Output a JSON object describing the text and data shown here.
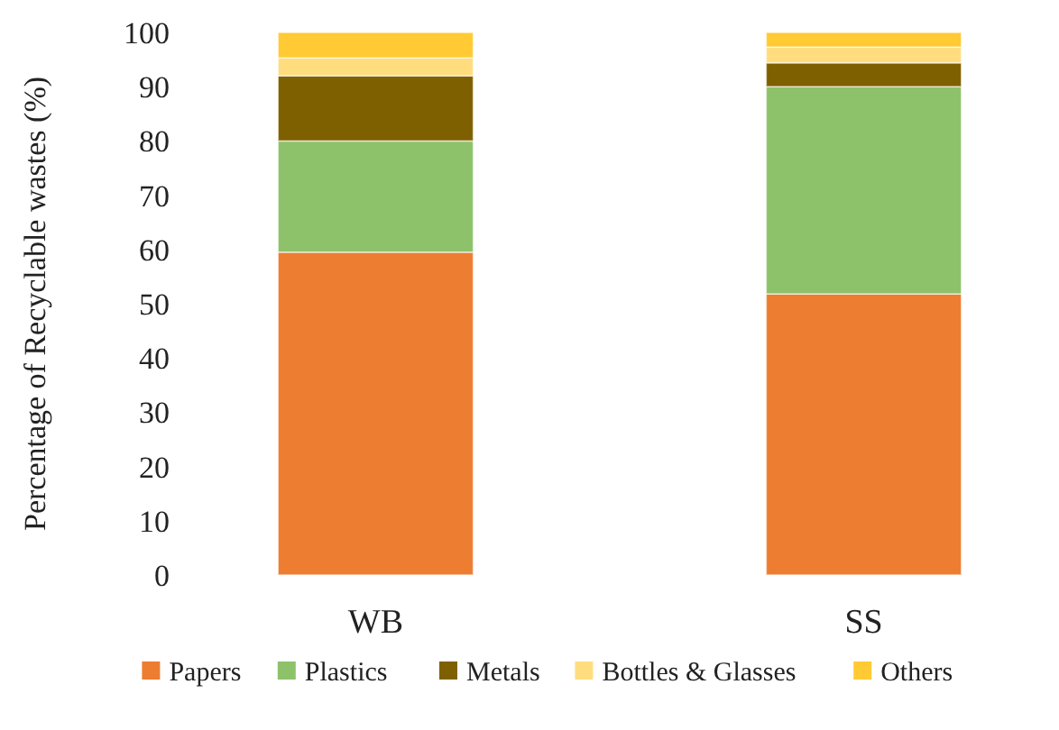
{
  "chart_data": {
    "type": "bar",
    "stacked": true,
    "ylabel": "Percentage of Recyclable wastes (%)",
    "categories": [
      "WB",
      "SS"
    ],
    "series": [
      {
        "name": "Papers",
        "color": "#ed7d31",
        "values": [
          59.5,
          51.8
        ]
      },
      {
        "name": "Plastics",
        "color": "#8dc26a",
        "values": [
          20.5,
          38.2
        ]
      },
      {
        "name": "Metals",
        "color": "#7f6000",
        "values": [
          12,
          4.4
        ]
      },
      {
        "name": "Bottles & Glasses",
        "color": "#ffdd7f",
        "values": [
          3.3,
          2.9
        ]
      },
      {
        "name": "Others",
        "color": "#ffca33",
        "values": [
          4.7,
          2.7
        ]
      }
    ],
    "ylim": [
      0,
      100
    ],
    "yticks": [
      0,
      10,
      20,
      30,
      40,
      50,
      60,
      70,
      80,
      90,
      100
    ],
    "grid": false,
    "legend": "bottom"
  }
}
